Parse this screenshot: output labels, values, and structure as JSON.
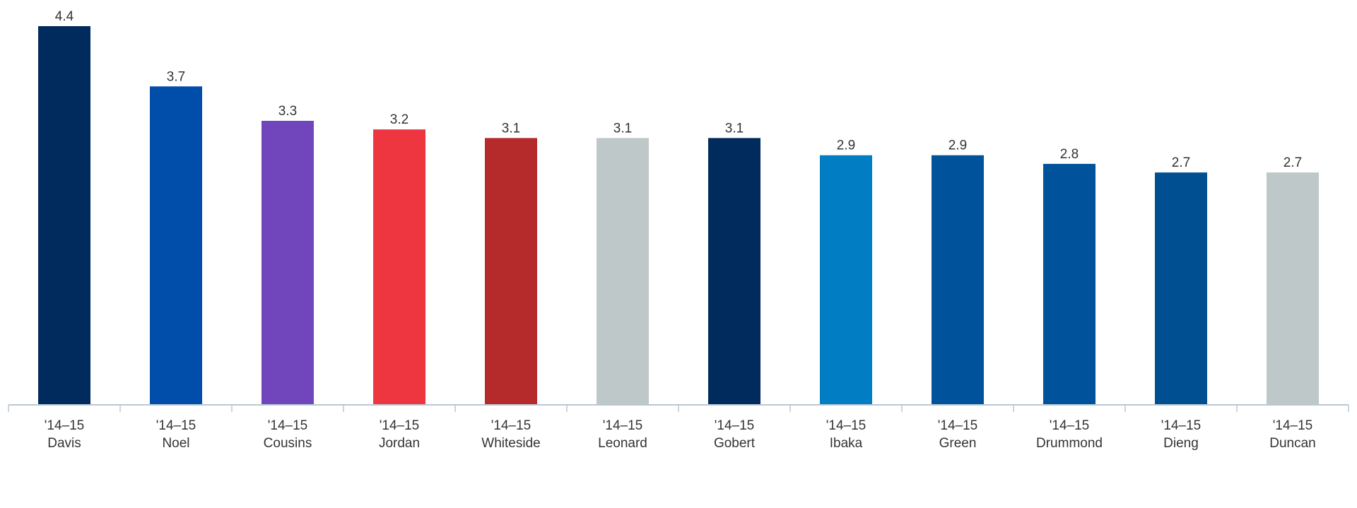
{
  "chart_data": {
    "type": "bar",
    "title": "",
    "xlabel": "",
    "ylabel": "",
    "ylim": [
      0,
      4.4
    ],
    "grid": false,
    "legend": "none",
    "season_label": "'14–15",
    "categories": [
      "Davis",
      "Noel",
      "Cousins",
      "Jordan",
      "Whiteside",
      "Leonard",
      "Gobert",
      "Ibaka",
      "Green",
      "Drummond",
      "Dieng",
      "Duncan"
    ],
    "values": [
      4.4,
      3.7,
      3.3,
      3.2,
      3.1,
      3.1,
      3.1,
      2.9,
      2.9,
      2.8,
      2.7,
      2.7
    ],
    "value_labels": [
      "4.4",
      "3.7",
      "3.3",
      "3.2",
      "3.1",
      "3.1",
      "3.1",
      "2.9",
      "2.9",
      "2.8",
      "2.7",
      "2.7"
    ],
    "colors": [
      "#002B5C",
      "#004DAA",
      "#7146BC",
      "#EE3640",
      "#B52A2A",
      "#BEC8C9",
      "#002B5C",
      "#007DC3",
      "#00529B",
      "#00529B",
      "#005091",
      "#BEC8C9"
    ],
    "axis_color": "#B9C7D4"
  }
}
